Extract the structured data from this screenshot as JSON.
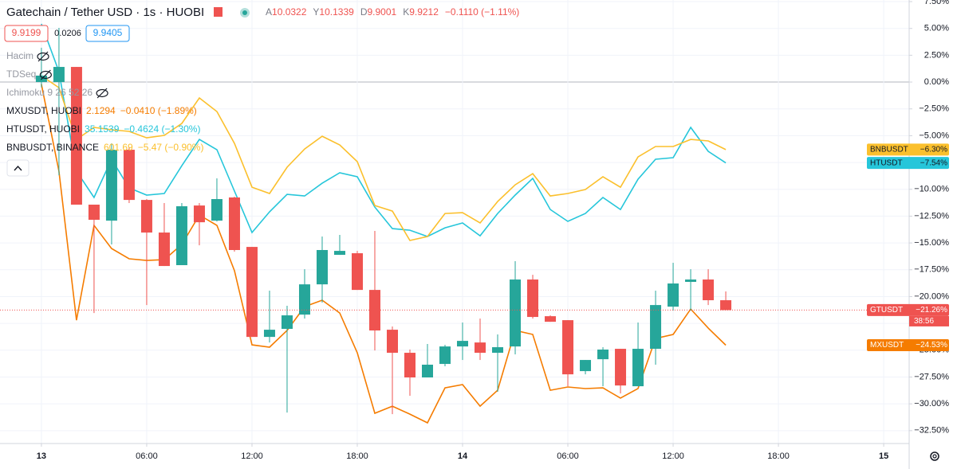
{
  "chart_data": {
    "type": "candlestick",
    "title": "Gatechain / Tether USD · 1s · HUOBI",
    "ohlc_legend": [
      {
        "key": "A",
        "value": 10.0322
      },
      {
        "key": "Y",
        "value": 10.1339
      },
      {
        "key": "D",
        "value": 9.9001
      },
      {
        "key": "K",
        "value": 9.9212
      }
    ],
    "change": "−0.1110 (−1.11%)",
    "bid": 9.9199,
    "spread": 0.0206,
    "ask": 9.9405,
    "indicators": [
      "Hacim",
      "TDSeq",
      "Ichimoku 9 26 52 26"
    ],
    "x": [
      0,
      1,
      2,
      3,
      4,
      5,
      6,
      7,
      8,
      9,
      10,
      11,
      12,
      13,
      14,
      15,
      16,
      17,
      18,
      19,
      20,
      21,
      22,
      23,
      24,
      25,
      26,
      27,
      28,
      29,
      30,
      31,
      32,
      33,
      34,
      35,
      36,
      37,
      38,
      39
    ],
    "xlim": [
      -2.36,
      49.45
    ],
    "xticks": [
      {
        "value": 0,
        "label": "13"
      },
      {
        "value": 6,
        "label": "06:00"
      },
      {
        "value": 12,
        "label": "12:00"
      },
      {
        "value": 18,
        "label": "18:00"
      },
      {
        "value": 24,
        "label": "14"
      },
      {
        "value": 30,
        "label": "06:00"
      },
      {
        "value": 36,
        "label": "12:00"
      },
      {
        "value": 42,
        "label": "18:00"
      },
      {
        "value": 48,
        "label": "15"
      }
    ],
    "ylim": [
      -33.7,
      7.65
    ],
    "yticks": [
      {
        "value": 7.5,
        "label": "7.50%"
      },
      {
        "value": 5,
        "label": "5.00%"
      },
      {
        "value": 2.5,
        "label": "2.50%"
      },
      {
        "value": 0,
        "label": "0.00%"
      },
      {
        "value": -2.5,
        "label": "−2.50%"
      },
      {
        "value": -5,
        "label": "−5.00%"
      },
      {
        "value": -7.5,
        "label": "−7.50%"
      },
      {
        "value": -10,
        "label": "−10.00%"
      },
      {
        "value": -12.5,
        "label": "−12.50%"
      },
      {
        "value": -15,
        "label": "−15.00%"
      },
      {
        "value": -17.5,
        "label": "−17.50%"
      },
      {
        "value": -20,
        "label": "−20.00%"
      },
      {
        "value": -22.5,
        "label": "−22.50%"
      },
      {
        "value": -25,
        "label": "−25.00%"
      },
      {
        "value": -27.5,
        "label": "−27.50%"
      },
      {
        "value": -30,
        "label": "−30.00%"
      },
      {
        "value": -32.5,
        "label": "−32.50%"
      }
    ],
    "grid": true,
    "candles": {
      "name": "GTUSDT",
      "up_color": "#26a69a",
      "down_color": "#ef5350",
      "last_label": "−21.26%",
      "countdown": "38:56",
      "open": [
        0,
        0,
        1.41,
        -11.43,
        -12.92,
        -6.31,
        -10.99,
        -14.03,
        -17.07,
        -11.51,
        -12.92,
        -10.76,
        -15.37,
        -23.76,
        -23.01,
        -21.68,
        -18.86,
        -16.11,
        -15.96,
        -19.38,
        -23.09,
        -25.24,
        -27.54,
        -26.28,
        -24.65,
        -24.28,
        -25.24,
        -24.65,
        -18.41,
        -21.83,
        -22.2,
        -26.95,
        -25.84,
        -24.87,
        -28.36,
        -24.87,
        -20.94,
        -18.63,
        -18.41,
        -20.34
      ],
      "high": [
        3.2,
        5.05,
        1.41,
        -11.43,
        -5.72,
        -6.09,
        -10.91,
        -11.28,
        -11.28,
        -11.28,
        -8.98,
        -10.69,
        -15.37,
        -19.45,
        -20.86,
        -17.45,
        -14.4,
        -14.25,
        -15.74,
        -13.88,
        -22.79,
        -24.94,
        -24.42,
        -24.5,
        -22.42,
        -22.05,
        -23.53,
        -16.7,
        -17.97,
        -21.75,
        -22.2,
        -25.91,
        -24.72,
        -24.87,
        -22.42,
        -19.45,
        -16.85,
        -17.45,
        -17.45,
        -19.52
      ],
      "low": [
        -0.5,
        -8.69,
        -11.43,
        -21.53,
        -15.14,
        -11.28,
        -20.79,
        -17.15,
        -17.07,
        -15.22,
        -13.0,
        -15.81,
        -23.76,
        -24.28,
        -30.81,
        -22.05,
        -20.56,
        -16.11,
        -19.38,
        -25.02,
        -30.96,
        -29.25,
        -27.54,
        -26.5,
        -25.91,
        -25.91,
        -28.88,
        -25.39,
        -22.05,
        -22.35,
        -28.36,
        -27.25,
        -28.36,
        -29.03,
        -28.36,
        -26.35,
        -21.31,
        -21.31,
        -20.79,
        -21.26
      ],
      "close": [
        0.6,
        1.41,
        -11.43,
        -12.84,
        -6.31,
        -10.99,
        -14.03,
        -17.15,
        -11.58,
        -13.07,
        -10.91,
        -15.66,
        -23.76,
        -23.09,
        -21.75,
        -18.86,
        -15.66,
        -15.74,
        -19.38,
        -23.16,
        -25.24,
        -27.54,
        -26.35,
        -24.65,
        -24.13,
        -25.24,
        -24.72,
        -18.41,
        -21.9,
        -22.35,
        -27.25,
        -25.91,
        -24.94,
        -28.29,
        -24.87,
        -20.79,
        -18.78,
        -18.41,
        -20.34,
        -21.26
      ]
    },
    "series": [
      {
        "name": "MXUSDT",
        "legend": "MXUSDT, HUOBI",
        "price": 2.1294,
        "change": "−0.0410 (−1.89%)",
        "color": "#f57c00",
        "text_color": "#ffffff",
        "last_label": "−24.53%",
        "values": [
          -0.2,
          -8.31,
          -22.2,
          -13.36,
          -15.52,
          -16.48,
          -16.63,
          -16.56,
          -15.14,
          -12.4,
          -13.36,
          -17.59,
          -24.5,
          -24.72,
          -23.16,
          -20.94,
          -20.34,
          -21.53,
          -25.24,
          -30.88,
          -30.22,
          -30.96,
          -31.77,
          -28.51,
          -28.21,
          -30.22,
          -28.73,
          -23.16,
          -23.53,
          -28.73,
          -28.43,
          -28.58,
          -28.51,
          -29.47,
          -28.58,
          -23.91,
          -23.53,
          -21.16,
          -22.94,
          -24.53
        ]
      },
      {
        "name": "HTUSDT",
        "legend": "HTUSDT, HUOBI",
        "price": 35.1539,
        "change": "−0.4624 (−1.30%)",
        "color": "#26c6da",
        "text_color": "#131722",
        "last_label": "−7.54%",
        "values": [
          5.42,
          0.97,
          -8.31,
          -10.76,
          -7.2,
          -9.87,
          -10.54,
          -10.39,
          -7.8,
          -5.35,
          -6.31,
          -10.17,
          -14.03,
          -12.1,
          -10.47,
          -10.62,
          -9.43,
          -8.46,
          -8.83,
          -11.66,
          -13.66,
          -13.81,
          -14.4,
          -13.59,
          -13.14,
          -14.33,
          -12.25,
          -10.54,
          -8.98,
          -11.88,
          -12.99,
          -12.25,
          -10.76,
          -11.88,
          -9.06,
          -7.2,
          -7.05,
          -4.23,
          -6.46,
          -7.54
        ]
      },
      {
        "name": "BNBUSDT",
        "legend": "BNBUSDT, BINANCE",
        "price": 601.69,
        "change": "−5.47 (−0.90%)",
        "color": "#fbc02d",
        "text_color": "#131722",
        "last_label": "−6.30%",
        "values": [
          0.59,
          -0.52,
          -5.35,
          -4.23,
          -4.45,
          -4.6,
          -5.2,
          -4.97,
          -3.86,
          -1.48,
          -2.75,
          -5.72,
          -9.8,
          -10.39,
          -7.94,
          -6.24,
          -5.05,
          -5.86,
          -7.42,
          -11.51,
          -12.03,
          -14.77,
          -14.4,
          -12.25,
          -12.18,
          -13.14,
          -11.14,
          -9.58,
          -8.54,
          -10.62,
          -10.39,
          -10.02,
          -8.83,
          -9.8,
          -6.98,
          -6.01,
          -6.01,
          -5.35,
          -5.49,
          -6.3
        ]
      }
    ]
  }
}
